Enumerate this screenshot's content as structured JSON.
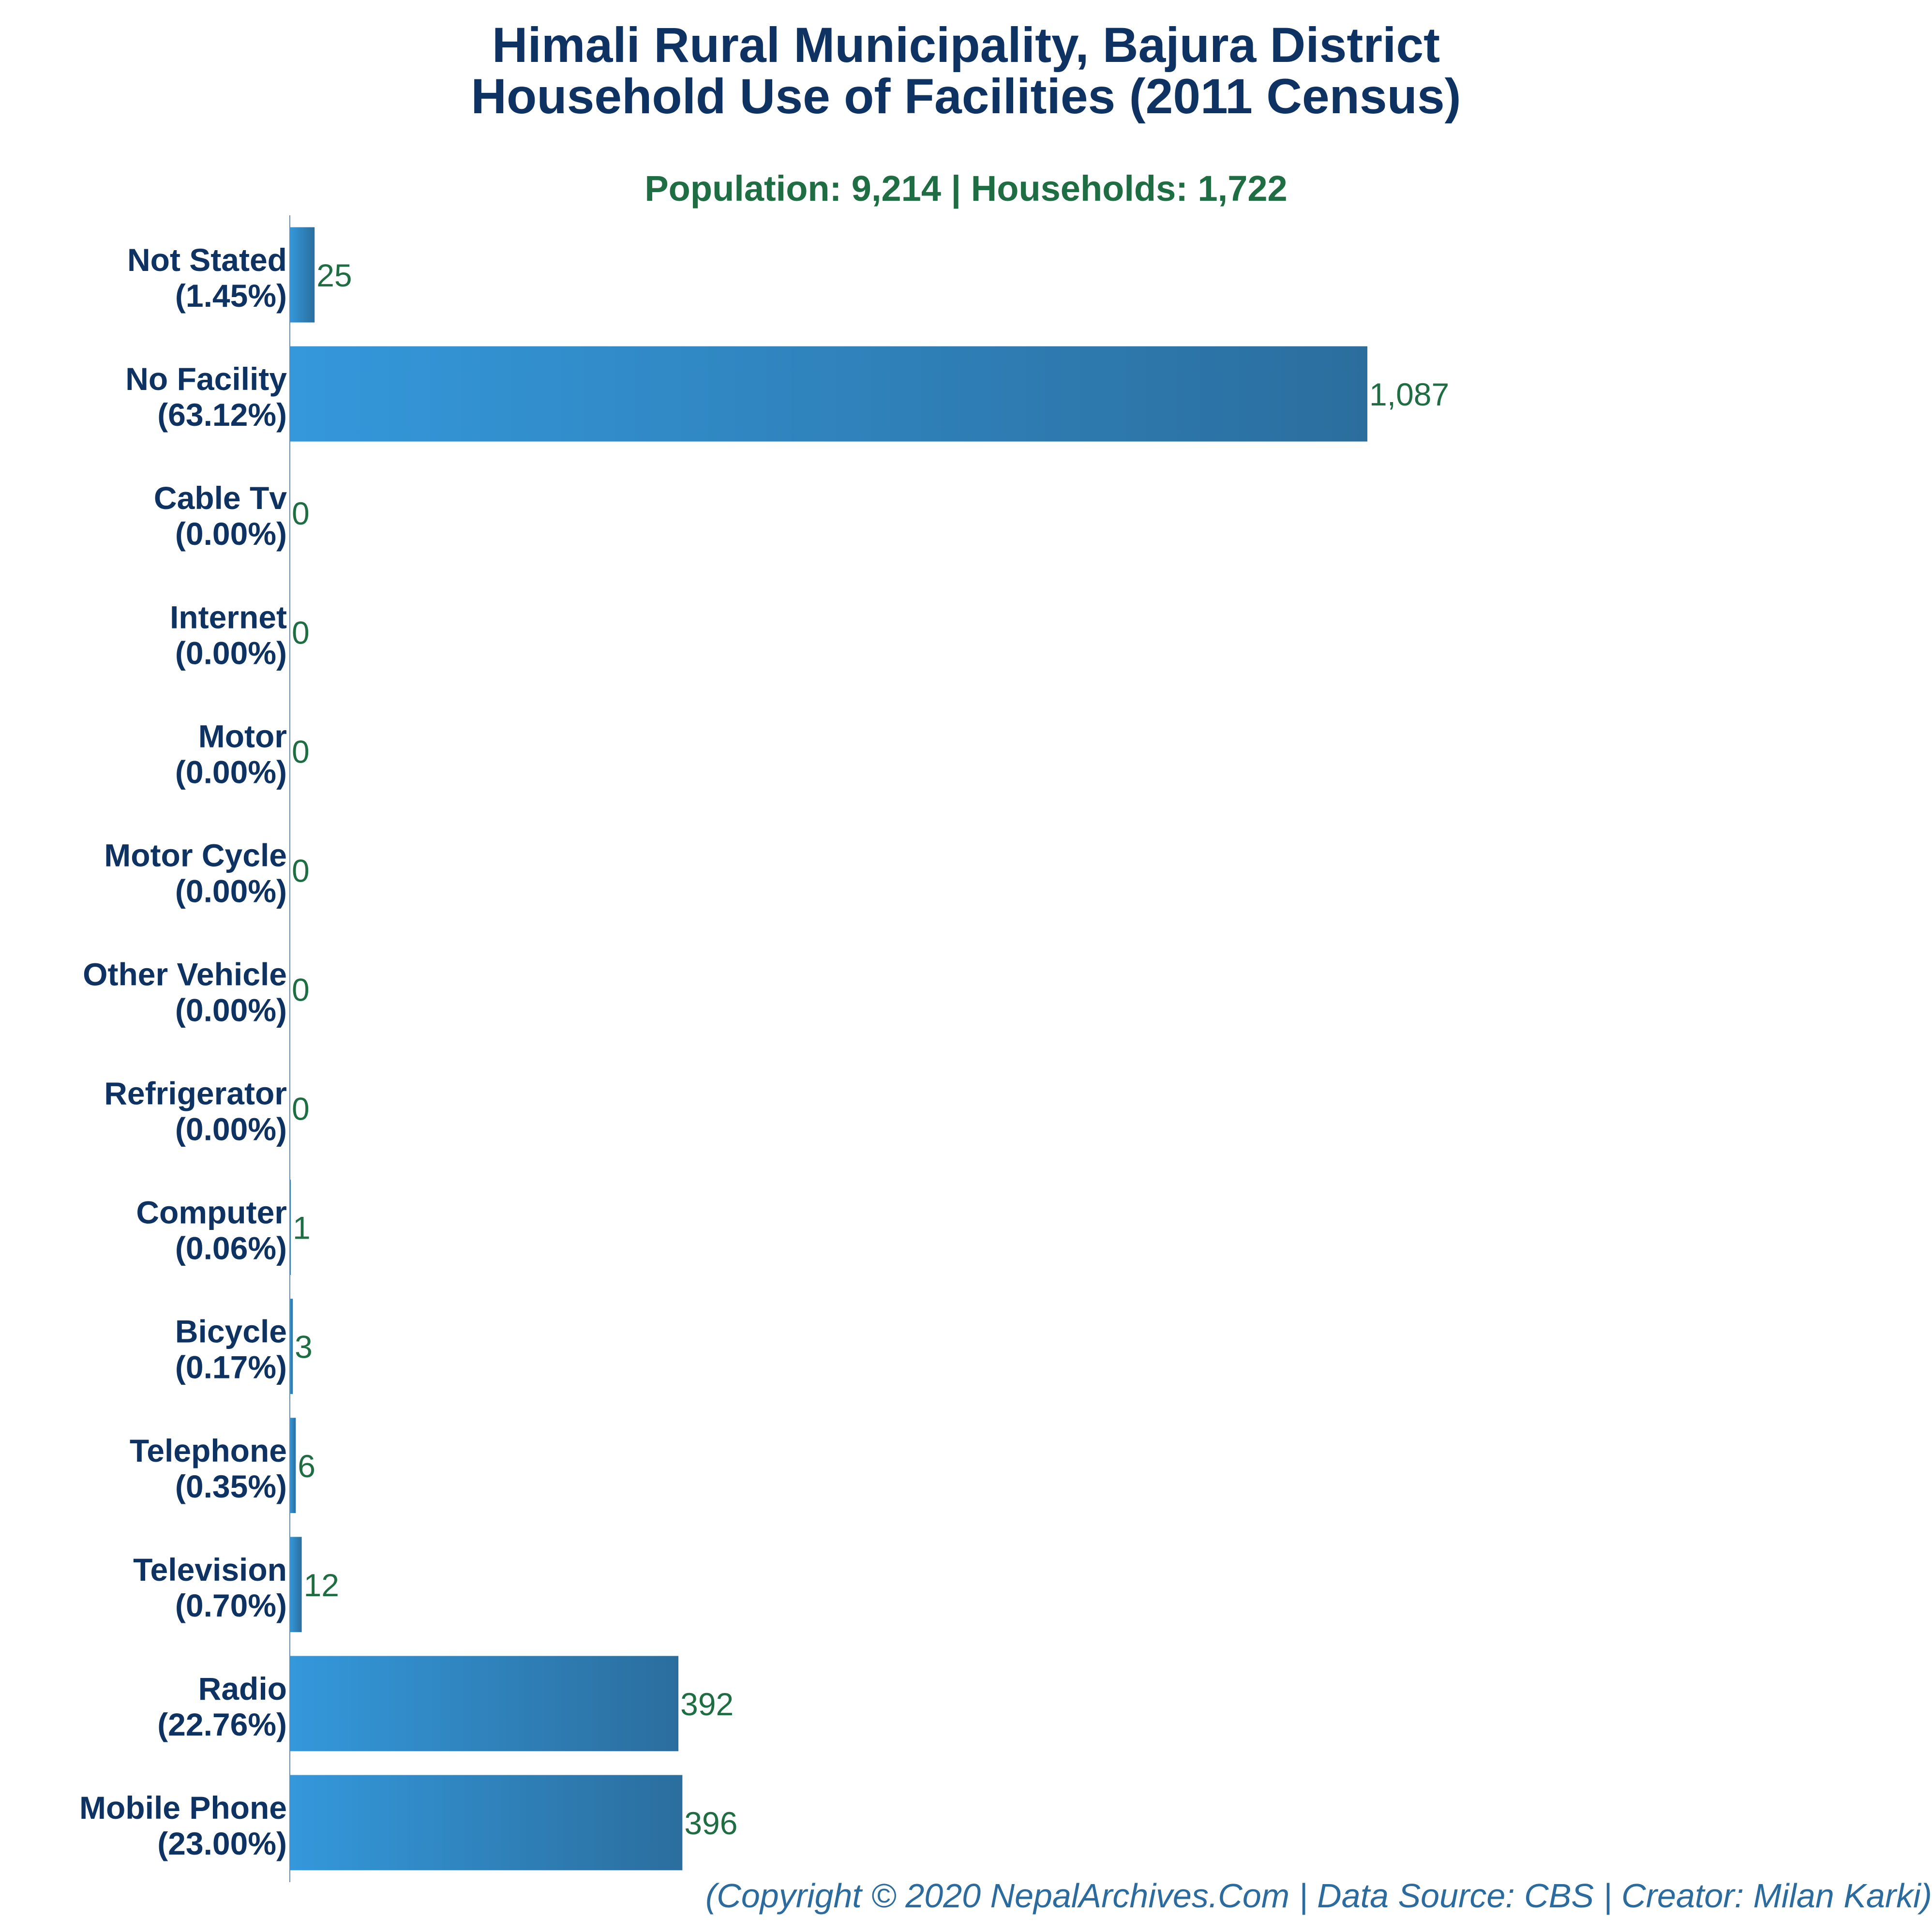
{
  "chart_data": {
    "type": "bar",
    "orientation": "horizontal",
    "title": "Himali Rural Municipality, Bajura District",
    "title_line2": "Household Use of Facilities (2011 Census)",
    "subtitle": "Population: 9,214 | Households: 1,722",
    "footer": "(Copyright © 2020 NepalArchives.Com | Data Source: CBS | Creator: Milan Karki)",
    "categories": [
      "Not Stated",
      "No Facility",
      "Cable Tv",
      "Internet",
      "Motor",
      "Motor Cycle",
      "Other Vehicle",
      "Refrigerator",
      "Computer",
      "Bicycle",
      "Telephone",
      "Television",
      "Radio",
      "Mobile Phone"
    ],
    "percent_labels": [
      "(1.45%)",
      "(63.12%)",
      "(0.00%)",
      "(0.00%)",
      "(0.00%)",
      "(0.00%)",
      "(0.00%)",
      "(0.00%)",
      "(0.06%)",
      "(0.17%)",
      "(0.35%)",
      "(0.70%)",
      "(22.76%)",
      "(23.00%)"
    ],
    "values": [
      25,
      1087,
      0,
      0,
      0,
      0,
      0,
      0,
      1,
      3,
      6,
      12,
      392,
      396
    ],
    "value_labels": [
      "25",
      "1,087",
      "0",
      "0",
      "0",
      "0",
      "0",
      "0",
      "1",
      "3",
      "6",
      "12",
      "392",
      "396"
    ],
    "xlim": [
      0,
      1250
    ],
    "grid": false,
    "legend": "none",
    "colors": {
      "bar_light": "#3498db",
      "bar_dark": "#2b6e9e",
      "title": "#0e3362",
      "subtitle": "#1f6e43",
      "value_text": "#1f6e43",
      "footer": "#2b6b9e",
      "axis": "#6a8aa8"
    }
  }
}
